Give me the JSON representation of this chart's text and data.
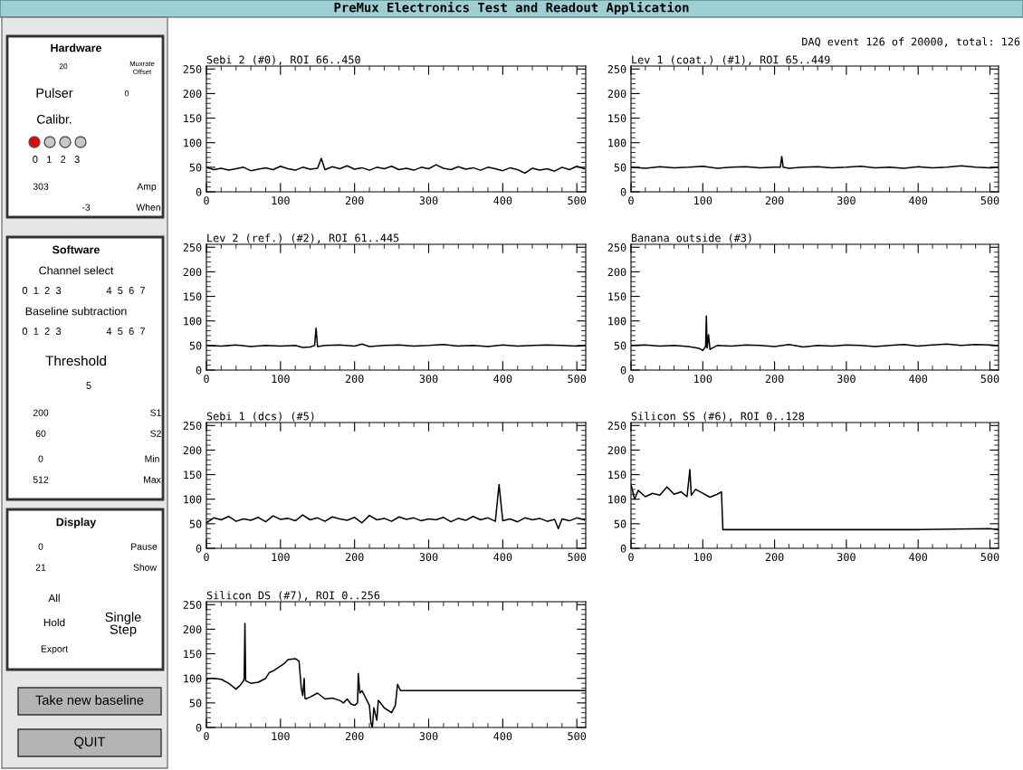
{
  "chart_data": [
    {
      "type": "line",
      "title": "Sebi 2 (#0), ROI 66..450",
      "color": "#000000",
      "xlim": [
        0,
        512
      ],
      "ylim": [
        0,
        256
      ],
      "xticks": [
        0,
        100,
        200,
        300,
        400,
        500
      ],
      "yticks": [
        0,
        50,
        100,
        150,
        200,
        250
      ],
      "x": [
        0,
        10,
        20,
        30,
        40,
        50,
        60,
        70,
        80,
        90,
        100,
        110,
        120,
        130,
        140,
        150,
        155,
        160,
        170,
        180,
        190,
        200,
        210,
        220,
        230,
        240,
        250,
        260,
        270,
        280,
        290,
        300,
        310,
        320,
        330,
        340,
        350,
        360,
        370,
        380,
        390,
        400,
        410,
        420,
        430,
        440,
        450,
        460,
        470,
        480,
        490,
        500,
        510
      ],
      "values": [
        50,
        45,
        48,
        44,
        47,
        50,
        43,
        46,
        49,
        45,
        52,
        47,
        44,
        50,
        46,
        48,
        68,
        45,
        51,
        47,
        53,
        46,
        49,
        44,
        50,
        47,
        52,
        45,
        48,
        44,
        50,
        47,
        55,
        48,
        45,
        51,
        46,
        49,
        44,
        50,
        47,
        43,
        49,
        45,
        38,
        48,
        44,
        47,
        42,
        50,
        45,
        52,
        47
      ]
    },
    {
      "type": "line",
      "title": "Lev 1 (coat.) (#1), ROI 65..449",
      "color": "#000000",
      "xlim": [
        0,
        512
      ],
      "ylim": [
        0,
        256
      ],
      "xticks": [
        0,
        100,
        200,
        300,
        400,
        500
      ],
      "yticks": [
        0,
        50,
        100,
        150,
        200,
        250
      ],
      "x": [
        0,
        20,
        40,
        60,
        80,
        100,
        120,
        140,
        160,
        180,
        200,
        208,
        210,
        212,
        220,
        240,
        260,
        280,
        300,
        320,
        340,
        360,
        380,
        400,
        420,
        440,
        460,
        480,
        500,
        511
      ],
      "values": [
        50,
        48,
        51,
        49,
        50,
        52,
        48,
        50,
        51,
        49,
        50,
        50,
        72,
        50,
        48,
        50,
        51,
        49,
        50,
        52,
        49,
        50,
        48,
        51,
        49,
        50,
        53,
        50,
        49,
        50
      ]
    },
    {
      "type": "line",
      "title": "Lev 2 (ref.) (#2), ROI 61..445",
      "color": "#000000",
      "xlim": [
        0,
        512
      ],
      "ylim": [
        0,
        256
      ],
      "xticks": [
        0,
        100,
        200,
        300,
        400,
        500
      ],
      "yticks": [
        0,
        50,
        100,
        150,
        200,
        250
      ],
      "x": [
        0,
        20,
        40,
        60,
        80,
        100,
        120,
        130,
        140,
        146,
        148,
        150,
        160,
        180,
        200,
        210,
        220,
        240,
        260,
        280,
        300,
        320,
        340,
        360,
        380,
        400,
        420,
        440,
        460,
        480,
        500,
        511
      ],
      "values": [
        50,
        49,
        51,
        48,
        50,
        49,
        50,
        46,
        47,
        50,
        85,
        48,
        50,
        51,
        49,
        53,
        48,
        50,
        51,
        49,
        50,
        52,
        49,
        50,
        48,
        51,
        49,
        50,
        51,
        50,
        49,
        50
      ]
    },
    {
      "type": "line",
      "title": "Banana outside (#3)",
      "color": "#000000",
      "xlim": [
        0,
        512
      ],
      "ylim": [
        0,
        256
      ],
      "xticks": [
        0,
        100,
        200,
        300,
        400,
        500
      ],
      "yticks": [
        0,
        50,
        100,
        150,
        200,
        250
      ],
      "x": [
        0,
        20,
        40,
        60,
        80,
        95,
        100,
        104,
        105,
        106,
        108,
        110,
        120,
        140,
        160,
        180,
        200,
        220,
        240,
        260,
        280,
        300,
        320,
        340,
        360,
        380,
        400,
        420,
        440,
        460,
        480,
        500,
        511
      ],
      "values": [
        50,
        51,
        49,
        50,
        48,
        44,
        40,
        48,
        110,
        45,
        72,
        42,
        50,
        49,
        51,
        50,
        48,
        52,
        47,
        50,
        49,
        51,
        50,
        48,
        50,
        52,
        49,
        51,
        53,
        50,
        52,
        51,
        50
      ]
    },
    {
      "type": "line",
      "title": "Sebi 1 (dcs) (#5)",
      "color": "#000000",
      "xlim": [
        0,
        512
      ],
      "ylim": [
        0,
        256
      ],
      "xticks": [
        0,
        100,
        200,
        300,
        400,
        500
      ],
      "yticks": [
        0,
        50,
        100,
        150,
        200,
        250
      ],
      "x": [
        0,
        10,
        20,
        30,
        40,
        50,
        60,
        70,
        80,
        90,
        100,
        110,
        120,
        130,
        140,
        150,
        160,
        170,
        180,
        190,
        200,
        210,
        220,
        230,
        240,
        250,
        260,
        270,
        280,
        290,
        300,
        310,
        320,
        330,
        340,
        350,
        360,
        370,
        380,
        390,
        395,
        400,
        410,
        420,
        430,
        440,
        450,
        460,
        470,
        475,
        480,
        490,
        500,
        510
      ],
      "values": [
        52,
        62,
        58,
        65,
        55,
        60,
        57,
        63,
        54,
        66,
        59,
        61,
        56,
        68,
        58,
        62,
        55,
        64,
        60,
        57,
        63,
        52,
        67,
        58,
        61,
        55,
        64,
        59,
        62,
        56,
        60,
        58,
        63,
        54,
        61,
        57,
        65,
        58,
        62,
        55,
        130,
        56,
        60,
        54,
        62,
        58,
        61,
        55,
        59,
        40,
        60,
        56,
        62,
        58
      ]
    },
    {
      "type": "line",
      "title": "Silicon SS (#6), ROI 0..128",
      "color": "#000000",
      "xlim": [
        0,
        512
      ],
      "ylim": [
        0,
        256
      ],
      "xticks": [
        0,
        100,
        200,
        300,
        400,
        500
      ],
      "yticks": [
        0,
        50,
        100,
        150,
        200,
        250
      ],
      "x": [
        0,
        5,
        10,
        20,
        30,
        40,
        50,
        60,
        70,
        78,
        82,
        84,
        90,
        100,
        110,
        120,
        126,
        128,
        130,
        200,
        300,
        400,
        500,
        511
      ],
      "values": [
        130,
        100,
        118,
        105,
        112,
        108,
        125,
        110,
        115,
        105,
        160,
        108,
        120,
        112,
        104,
        110,
        115,
        38,
        38,
        38,
        38,
        38,
        40,
        38
      ]
    },
    {
      "type": "line",
      "title": "Silicon DS (#7), ROI 0..256",
      "color": "#000000",
      "xlim": [
        0,
        512
      ],
      "ylim": [
        0,
        256
      ],
      "xticks": [
        0,
        100,
        200,
        300,
        400,
        500
      ],
      "yticks": [
        0,
        50,
        100,
        150,
        200,
        250
      ],
      "x": [
        0,
        2,
        10,
        20,
        30,
        40,
        45,
        50,
        51,
        52,
        53,
        60,
        70,
        80,
        85,
        90,
        100,
        105,
        110,
        120,
        125,
        127,
        128,
        130,
        132,
        133,
        134,
        140,
        150,
        160,
        170,
        180,
        185,
        190,
        195,
        200,
        204,
        205,
        207,
        210,
        215,
        220,
        222,
        224,
        226,
        230,
        232,
        235,
        240,
        245,
        250,
        255,
        258,
        262,
        265,
        300,
        400,
        511
      ],
      "values": [
        95,
        100,
        100,
        98,
        90,
        78,
        85,
        95,
        100,
        212,
        95,
        90,
        92,
        100,
        112,
        115,
        125,
        130,
        138,
        140,
        135,
        100,
        80,
        65,
        100,
        60,
        58,
        62,
        70,
        58,
        60,
        55,
        50,
        58,
        48,
        45,
        50,
        110,
        70,
        75,
        60,
        45,
        10,
        0,
        40,
        15,
        55,
        50,
        40,
        35,
        30,
        45,
        88,
        75,
        75,
        75,
        75,
        75
      ]
    },
    {
      "type": "other",
      "title": "PreMux Electronics Test and Readout Application",
      "annotations": [
        "DAQ event 126 of 20000, total: 126",
        "Hardware",
        "20",
        "Muxrate",
        "Offset",
        "Pulser",
        "0",
        "Calibr.",
        "0   1   2   3",
        "303",
        "Amp",
        "-3",
        "When",
        "Software",
        "Channel select",
        "0  1  2  3",
        "4  5  6  7",
        "Baseline subtraction",
        "0  1  2  3",
        "4  5  6  7",
        "Threshold",
        "5",
        "200",
        "S1",
        "60",
        "S2",
        "0",
        "Min",
        "512",
        "Max",
        "Display",
        "0",
        "Pause",
        "21",
        "Show",
        "All",
        "Hold",
        "Export",
        "Single\nStep",
        "Take new baseline",
        "QUIT"
      ]
    }
  ]
}
